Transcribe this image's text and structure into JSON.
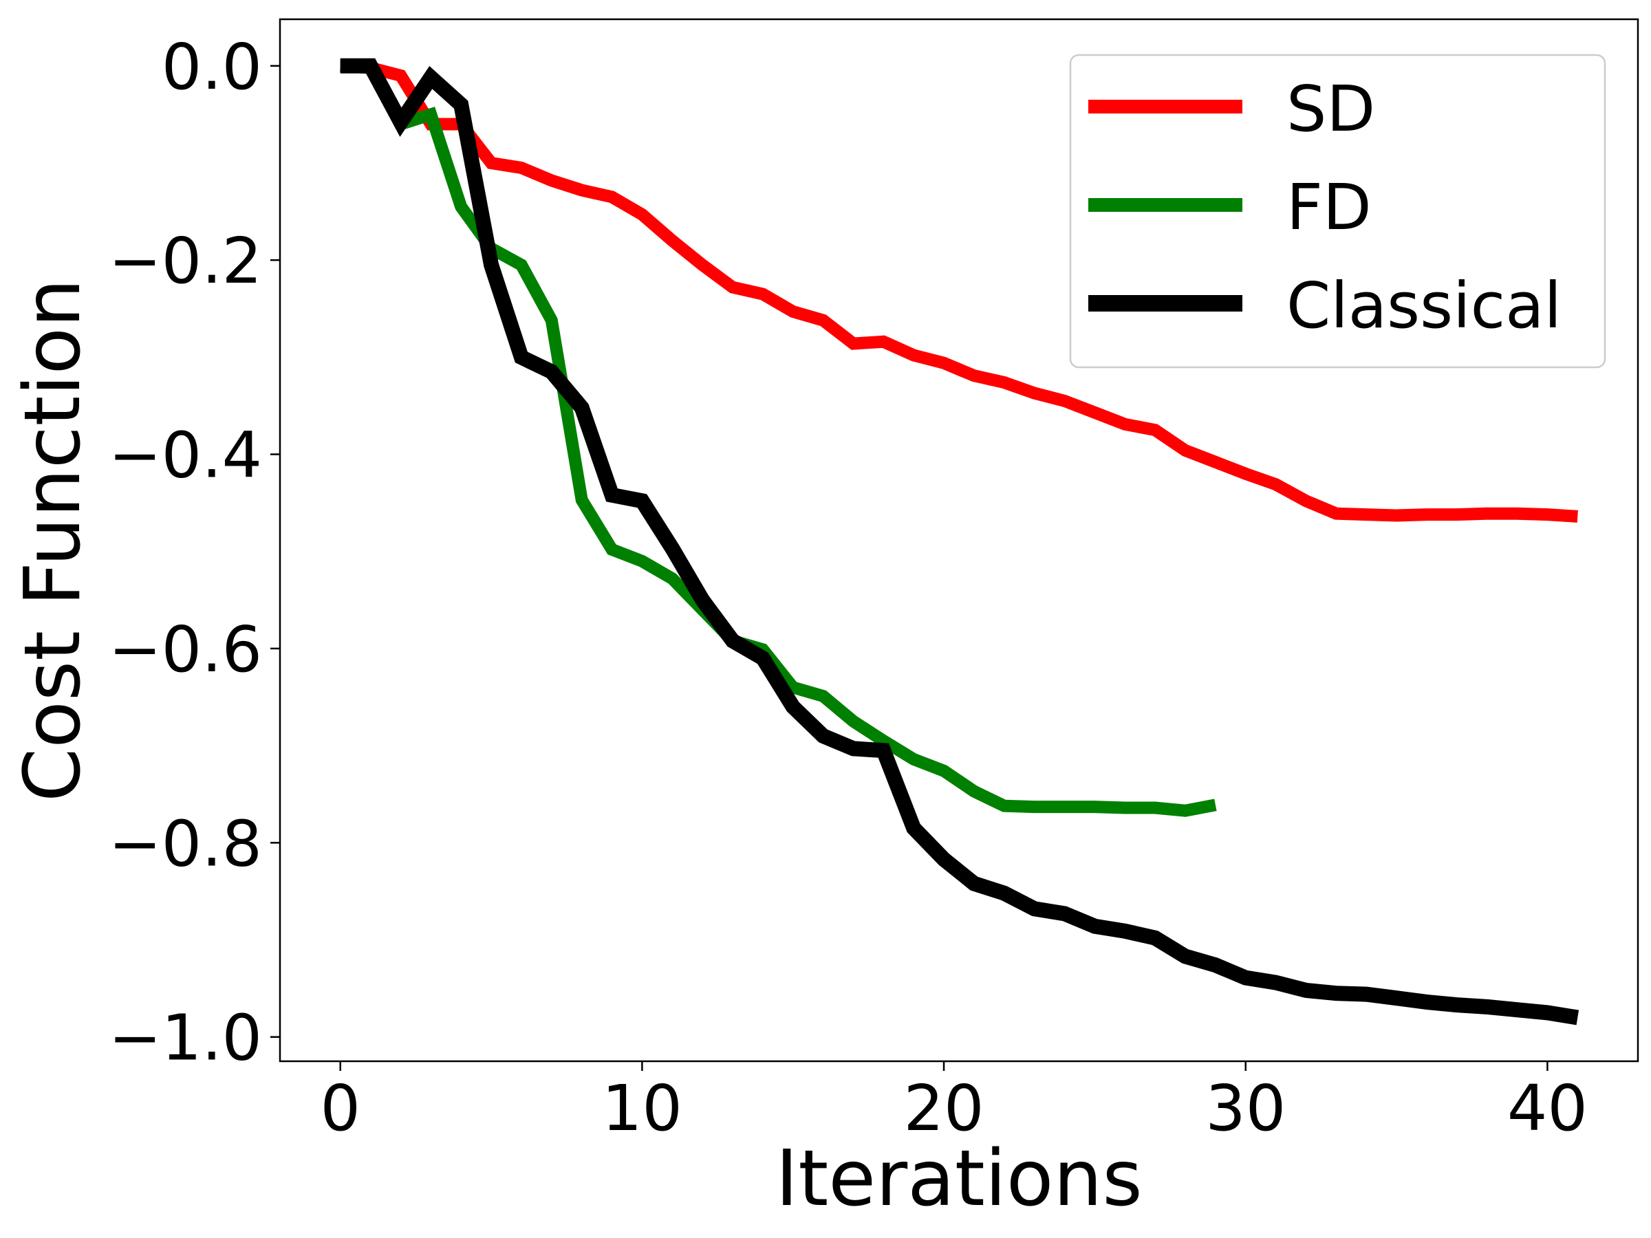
{
  "chart_data": {
    "type": "line",
    "xlabel": "Iterations",
    "ylabel": "Cost Function",
    "xlim": [
      -2,
      43
    ],
    "ylim": [
      -1.025,
      0.048
    ],
    "xticks": [
      0,
      10,
      20,
      30,
      40
    ],
    "yticks": [
      0.0,
      -0.2,
      -0.4,
      -0.6,
      -0.8,
      -1.0
    ],
    "ytick_labels": [
      "0.0",
      "−0.2",
      "−0.4",
      "−0.6",
      "−0.8",
      "−1.0"
    ],
    "grid": false,
    "legend_position": "top-right",
    "series": [
      {
        "name": "SD",
        "color": "#ff0000",
        "x": [
          0,
          1,
          2,
          3,
          4,
          5,
          6,
          7,
          8,
          9,
          10,
          11,
          12,
          13,
          14,
          15,
          16,
          17,
          18,
          19,
          20,
          21,
          22,
          23,
          24,
          25,
          26,
          27,
          28,
          29,
          30,
          31,
          32,
          33,
          34,
          35,
          36,
          37,
          38,
          39,
          40,
          41
        ],
        "y": [
          0.0,
          -0.002,
          -0.01,
          -0.06,
          -0.06,
          -0.1,
          -0.105,
          -0.118,
          -0.128,
          -0.135,
          -0.153,
          -0.18,
          -0.205,
          -0.228,
          -0.235,
          -0.253,
          -0.262,
          -0.286,
          -0.284,
          -0.298,
          -0.306,
          -0.319,
          -0.326,
          -0.337,
          -0.345,
          -0.357,
          -0.369,
          -0.375,
          -0.396,
          -0.408,
          -0.42,
          -0.431,
          -0.448,
          -0.461,
          -0.462,
          -0.463,
          -0.462,
          -0.462,
          -0.461,
          -0.461,
          -0.462,
          -0.464
        ]
      },
      {
        "name": "FD",
        "color": "#008000",
        "x": [
          0,
          1,
          2,
          3,
          4,
          5,
          6,
          7,
          8,
          9,
          10,
          11,
          12,
          13,
          14,
          15,
          16,
          17,
          18,
          19,
          20,
          21,
          22,
          23,
          24,
          25,
          26,
          27,
          28,
          29
        ],
        "y": [
          0.0,
          0.0,
          -0.06,
          -0.05,
          -0.145,
          -0.188,
          -0.205,
          -0.262,
          -0.447,
          -0.498,
          -0.51,
          -0.528,
          -0.56,
          -0.592,
          -0.601,
          -0.64,
          -0.649,
          -0.675,
          -0.695,
          -0.714,
          -0.726,
          -0.747,
          -0.762,
          -0.763,
          -0.763,
          -0.763,
          -0.764,
          -0.764,
          -0.767,
          -0.761
        ]
      },
      {
        "name": "Classical",
        "color": "#000000",
        "x": [
          0,
          1,
          2,
          3,
          4,
          5,
          6,
          7,
          8,
          9,
          10,
          11,
          12,
          13,
          14,
          15,
          16,
          17,
          18,
          19,
          20,
          21,
          22,
          23,
          24,
          25,
          26,
          27,
          28,
          29,
          30,
          31,
          32,
          33,
          34,
          35,
          36,
          37,
          38,
          39,
          40,
          41
        ],
        "y": [
          0.0,
          0.0,
          -0.058,
          -0.012,
          -0.04,
          -0.205,
          -0.3,
          -0.315,
          -0.352,
          -0.442,
          -0.448,
          -0.497,
          -0.55,
          -0.592,
          -0.61,
          -0.66,
          -0.69,
          -0.703,
          -0.705,
          -0.785,
          -0.817,
          -0.842,
          -0.852,
          -0.868,
          -0.873,
          -0.886,
          -0.891,
          -0.898,
          -0.917,
          -0.926,
          -0.939,
          -0.944,
          -0.952,
          -0.955,
          -0.956,
          -0.96,
          -0.964,
          -0.967,
          -0.969,
          -0.972,
          -0.975,
          -0.98
        ]
      }
    ]
  }
}
